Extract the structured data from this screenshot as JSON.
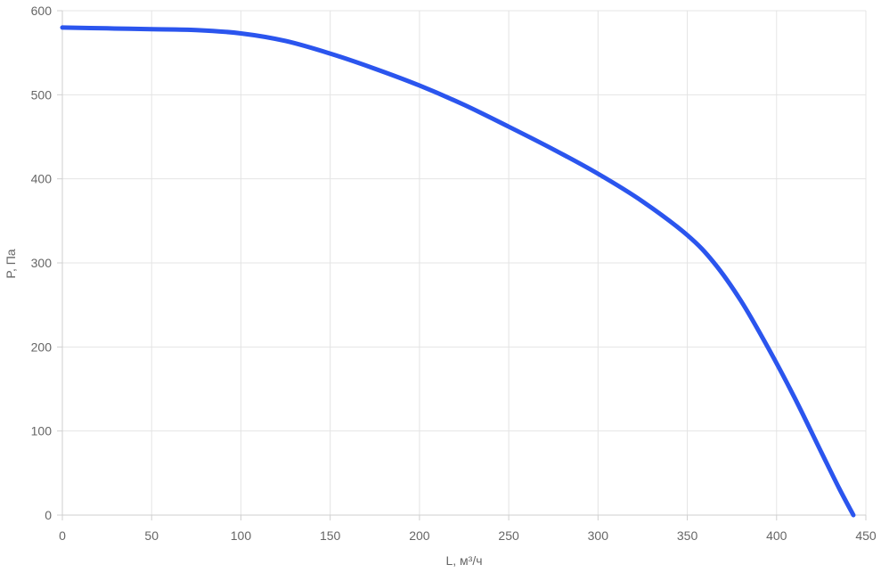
{
  "chart_data": {
    "type": "line",
    "xlabel": "L, м³/ч",
    "ylabel": "P, Па",
    "xlim": [
      0,
      450
    ],
    "ylim": [
      0,
      600
    ],
    "x_ticks": [
      "0",
      "50",
      "100",
      "150",
      "200",
      "250",
      "300",
      "350",
      "400",
      "450"
    ],
    "y_ticks": [
      "0",
      "100",
      "200",
      "300",
      "400",
      "500",
      "600"
    ],
    "grid": true,
    "series": [
      {
        "color": "#2b55ee",
        "points": [
          [
            0,
            580
          ],
          [
            25,
            579
          ],
          [
            50,
            578
          ],
          [
            75,
            577
          ],
          [
            100,
            573
          ],
          [
            125,
            564
          ],
          [
            150,
            549
          ],
          [
            175,
            531
          ],
          [
            200,
            511
          ],
          [
            225,
            488
          ],
          [
            250,
            462
          ],
          [
            275,
            435
          ],
          [
            300,
            406
          ],
          [
            325,
            373
          ],
          [
            350,
            333
          ],
          [
            365,
            300
          ],
          [
            380,
            255
          ],
          [
            395,
            200
          ],
          [
            410,
            140
          ],
          [
            425,
            75
          ],
          [
            435,
            32
          ],
          [
            443,
            0
          ]
        ]
      }
    ]
  }
}
